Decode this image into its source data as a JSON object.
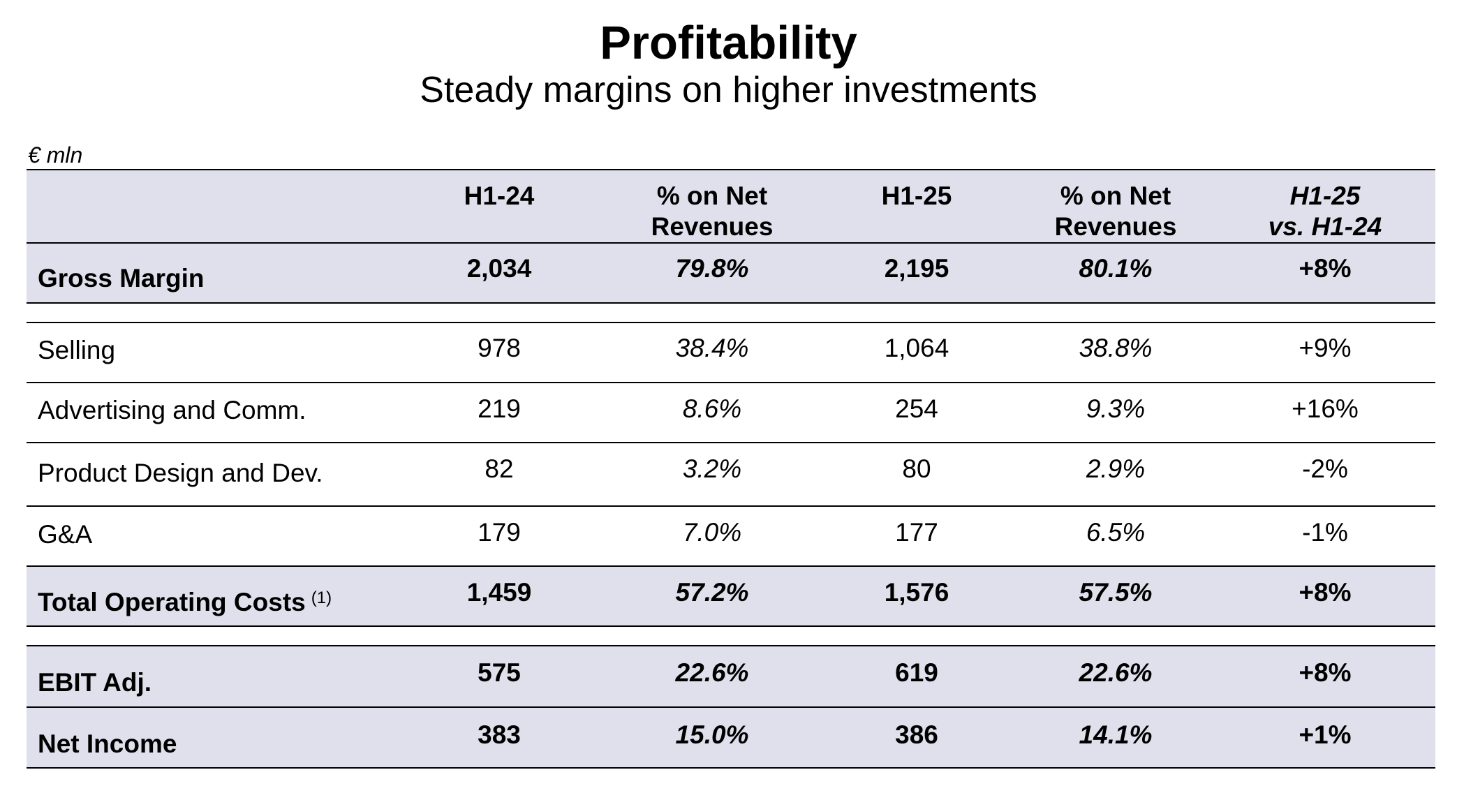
{
  "title": "Profitability",
  "subtitle": "Steady margins on higher investments",
  "unit": "€ mln",
  "columns": {
    "h1_24": "H1-24",
    "pct_24": "% on Net Revenues",
    "h1_25": "H1-25",
    "pct_25": "% on Net Revenues",
    "change_line1": "H1-25",
    "change_line2": "vs. H1-24"
  },
  "rows": [
    {
      "label": "Gross Margin",
      "h1_24": "2,034",
      "pct_24": "79.8%",
      "h1_25": "2,195",
      "pct_25": "80.1%",
      "change": "+8%"
    },
    {
      "label": "Selling",
      "h1_24": "978",
      "pct_24": "38.4%",
      "h1_25": "1,064",
      "pct_25": "38.8%",
      "change": "+9%"
    },
    {
      "label": "Advertising and Comm.",
      "h1_24": "219",
      "pct_24": "8.6%",
      "h1_25": "254",
      "pct_25": "9.3%",
      "change": "+16%"
    },
    {
      "label": "Product Design and Dev.",
      "h1_24": "82",
      "pct_24": "3.2%",
      "h1_25": "80",
      "pct_25": "2.9%",
      "change": "-2%"
    },
    {
      "label": "G&A",
      "h1_24": "179",
      "pct_24": "7.0%",
      "h1_25": "177",
      "pct_25": "6.5%",
      "change": "-1%"
    },
    {
      "label": "Total Operating Costs",
      "footnote": "(1)",
      "h1_24": "1,459",
      "pct_24": "57.2%",
      "h1_25": "1,576",
      "pct_25": "57.5%",
      "change": "+8%"
    },
    {
      "label": "EBIT Adj.",
      "h1_24": "575",
      "pct_24": "22.6%",
      "h1_25": "619",
      "pct_25": "22.6%",
      "change": "+8%"
    },
    {
      "label": "Net Income",
      "h1_24": "383",
      "pct_24": "15.0%",
      "h1_25": "386",
      "pct_25": "14.1%",
      "change": "+1%"
    }
  ],
  "colors": {
    "highlight_band": "#dfe0ec",
    "rule": "#000000"
  }
}
